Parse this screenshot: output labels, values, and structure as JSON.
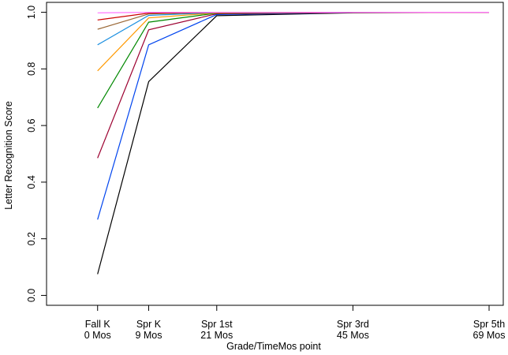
{
  "chart_data": {
    "type": "line",
    "title": "",
    "xlabel": "Grade/TimeMos point",
    "ylabel": "Letter Recognition Score",
    "x": [
      0,
      9,
      21,
      45,
      69
    ],
    "x_tick_labels": [
      {
        "grade": "Fall K",
        "time": "0 Mos"
      },
      {
        "grade": "Spr K",
        "time": "9 Mos"
      },
      {
        "grade": "Spr 1st",
        "time": "21 Mos"
      },
      {
        "grade": "Spr 3rd",
        "time": "45 Mos"
      },
      {
        "grade": "Spr 5th",
        "time": "69 Mos"
      }
    ],
    "y_ticks": [
      "0.0",
      "0.2",
      "0.4",
      "0.6",
      "0.8",
      "1.0"
    ],
    "xlim": [
      -9,
      71.5
    ],
    "ylim": [
      -0.035,
      1.035
    ],
    "grid": false,
    "legend": "none",
    "series": [
      {
        "color": "#000000",
        "values": [
          0.075,
          0.755,
          0.988,
          0.998,
          1.0
        ]
      },
      {
        "color": "#0044ee",
        "values": [
          0.268,
          0.885,
          0.992,
          0.999,
          1.0
        ]
      },
      {
        "color": "#9c0030",
        "values": [
          0.485,
          0.938,
          0.995,
          0.999,
          1.0
        ]
      },
      {
        "color": "#008800",
        "values": [
          0.662,
          0.965,
          0.997,
          1.0,
          1.0
        ]
      },
      {
        "color": "#ff9900",
        "values": [
          0.793,
          0.98,
          0.998,
          1.0,
          1.0
        ]
      },
      {
        "color": "#1b8fe0",
        "values": [
          0.885,
          0.989,
          0.999,
          1.0,
          1.0
        ]
      },
      {
        "color": "#996633",
        "values": [
          0.94,
          0.994,
          1.0,
          1.0,
          1.0
        ]
      },
      {
        "color": "#cc0000",
        "values": [
          0.973,
          0.997,
          1.0,
          1.0,
          1.0
        ]
      },
      {
        "color": "#ff77ff",
        "values": [
          0.998,
          1.0,
          1.0,
          1.0,
          1.0
        ]
      }
    ]
  }
}
